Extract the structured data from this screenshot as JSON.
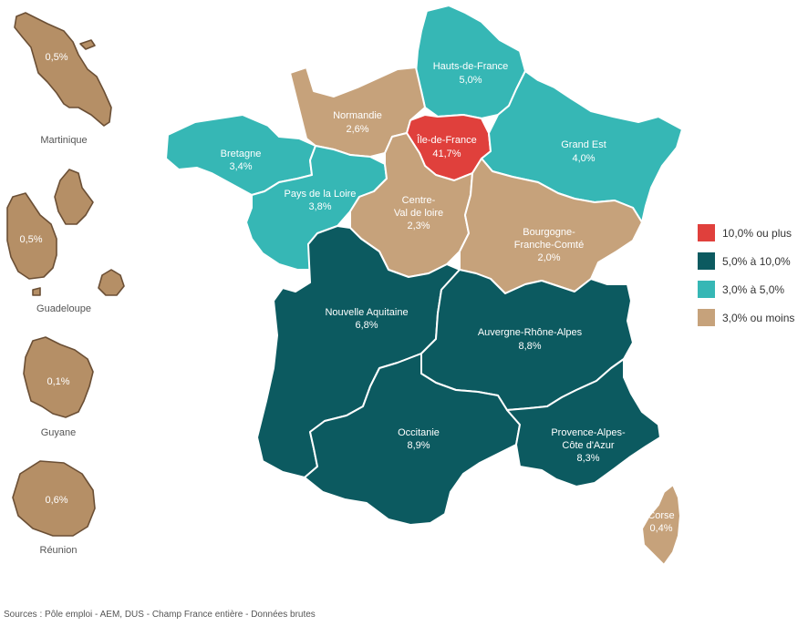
{
  "legend": [
    {
      "label": "10,0% ou plus",
      "color": "#e0403c"
    },
    {
      "label": "5,0% à 10,0%",
      "color": "#0c5a60"
    },
    {
      "label": "3,0% à 5,0%",
      "color": "#36b7b5"
    },
    {
      "label": "3,0% ou moins",
      "color": "#c6a27b"
    }
  ],
  "regions": {
    "hauts_de_france": {
      "name": "Hauts-de-France",
      "value": "5,0%"
    },
    "normandie": {
      "name": "Normandie",
      "value": "2,6%"
    },
    "ile_de_france": {
      "name": "Île-de-France",
      "value": "41,7%"
    },
    "grand_est": {
      "name": "Grand Est",
      "value": "4,0%"
    },
    "bretagne": {
      "name": "Bretagne",
      "value": "3,4%"
    },
    "pays_de_la_loire": {
      "name": "Pays de la Loire",
      "value": "3,8%"
    },
    "centre_val_de_loire": {
      "name_line1": "Centre-",
      "name_line2": "Val de loire",
      "value": "2,3%"
    },
    "bourgogne_franche_comte": {
      "name_line1": "Bourgogne-",
      "name_line2": "Franche-Comté",
      "value": "2,0%"
    },
    "nouvelle_aquitaine": {
      "name": "Nouvelle Aquitaine",
      "value": "6,8%"
    },
    "auvergne_rhone_alpes": {
      "name": "Auvergne-Rhône-Alpes",
      "value": "8,8%"
    },
    "occitanie": {
      "name": "Occitanie",
      "value": "8,9%"
    },
    "provence_alpes_cote_azur": {
      "name_line1": "Provence-Alpes-",
      "name_line2": "Côte d'Azur",
      "value": "8,3%"
    },
    "corse": {
      "name": "Corse",
      "value": "0,4%"
    }
  },
  "overseas": {
    "martinique": {
      "name": "Martinique",
      "value": "0,5%"
    },
    "guadeloupe": {
      "name": "Guadeloupe",
      "value": "0,5%"
    },
    "guyane": {
      "name": "Guyane",
      "value": "0,1%"
    },
    "reunion": {
      "name": "Réunion",
      "value": "0,6%"
    }
  },
  "source": "Sources : Pôle emploi - AEM, DUS - Champ France entière - Données brutes"
}
